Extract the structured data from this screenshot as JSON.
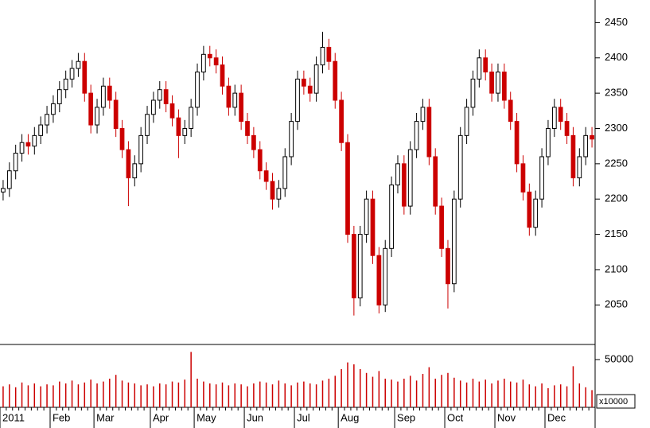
{
  "chart_data": [
    {
      "type": "candlestick",
      "categories": [
        "2011",
        null,
        null,
        null,
        null,
        null,
        null,
        null,
        "Feb",
        null,
        null,
        null,
        null,
        null,
        null,
        "Mar",
        null,
        null,
        null,
        null,
        null,
        null,
        null,
        null,
        "Apr",
        null,
        null,
        null,
        null,
        null,
        null,
        "May",
        null,
        null,
        null,
        null,
        null,
        null,
        null,
        "Jun",
        null,
        null,
        null,
        null,
        null,
        null,
        null,
        "Jul",
        null,
        null,
        null,
        null,
        null,
        null,
        "Aug",
        null,
        null,
        null,
        null,
        null,
        null,
        null,
        null,
        "Sep",
        null,
        null,
        null,
        null,
        null,
        null,
        null,
        "Oct",
        null,
        null,
        null,
        null,
        null,
        null,
        null,
        "Nov",
        null,
        null,
        null,
        null,
        null,
        null,
        null,
        "Dec",
        null,
        null,
        null,
        null,
        null,
        null,
        null
      ],
      "open": [
        2210,
        2215,
        2240,
        2265,
        2280,
        2275,
        2290,
        2305,
        2320,
        2335,
        2355,
        2370,
        2385,
        2395,
        2350,
        2305,
        2330,
        2360,
        2340,
        2300,
        2270,
        2230,
        2250,
        2290,
        2320,
        2340,
        2355,
        2335,
        2315,
        2290,
        2300,
        2330,
        2380,
        2405,
        2400,
        2390,
        2360,
        2330,
        2350,
        2310,
        2290,
        2270,
        2240,
        2225,
        2200,
        2215,
        2260,
        2310,
        2370,
        2360,
        2350,
        2390,
        2415,
        2395,
        2340,
        2280,
        2150,
        2060,
        2150,
        2200,
        2120,
        2050,
        2130,
        2220,
        2250,
        2190,
        2270,
        2310,
        2330,
        2260,
        2190,
        2130,
        2080,
        2200,
        2290,
        2330,
        2370,
        2400,
        2380,
        2350,
        2380,
        2340,
        2310,
        2250,
        2210,
        2160,
        2200,
        2260,
        2300,
        2330,
        2310,
        2290,
        2230,
        2260,
        2290
      ],
      "high": [
        2227,
        2252,
        2277,
        2292,
        2292,
        2302,
        2317,
        2332,
        2347,
        2367,
        2382,
        2397,
        2407,
        2407,
        2362,
        2342,
        2372,
        2372,
        2352,
        2312,
        2282,
        2262,
        2302,
        2332,
        2352,
        2367,
        2367,
        2347,
        2327,
        2312,
        2342,
        2392,
        2417,
        2417,
        2412,
        2402,
        2372,
        2362,
        2362,
        2322,
        2302,
        2282,
        2252,
        2237,
        2227,
        2272,
        2322,
        2382,
        2382,
        2372,
        2402,
        2437,
        2427,
        2407,
        2352,
        2292,
        2162,
        2162,
        2212,
        2212,
        2132,
        2142,
        2232,
        2262,
        2262,
        2282,
        2322,
        2342,
        2342,
        2272,
        2202,
        2142,
        2212,
        2302,
        2342,
        2382,
        2412,
        2412,
        2392,
        2392,
        2392,
        2352,
        2322,
        2262,
        2222,
        2212,
        2272,
        2312,
        2342,
        2342,
        2322,
        2302,
        2272,
        2302,
        2302
      ],
      "low": [
        2198,
        2203,
        2228,
        2253,
        2263,
        2263,
        2278,
        2293,
        2308,
        2323,
        2343,
        2358,
        2373,
        2338,
        2293,
        2293,
        2318,
        2328,
        2288,
        2258,
        2190,
        2218,
        2238,
        2278,
        2308,
        2328,
        2323,
        2303,
        2258,
        2278,
        2288,
        2318,
        2368,
        2388,
        2378,
        2348,
        2318,
        2318,
        2298,
        2278,
        2258,
        2228,
        2213,
        2185,
        2188,
        2203,
        2248,
        2298,
        2348,
        2338,
        2338,
        2378,
        2383,
        2328,
        2268,
        2138,
        2035,
        2048,
        2138,
        2108,
        2038,
        2040,
        2118,
        2208,
        2178,
        2178,
        2258,
        2298,
        2248,
        2178,
        2118,
        2045,
        2068,
        2188,
        2278,
        2318,
        2358,
        2368,
        2338,
        2338,
        2328,
        2298,
        2238,
        2198,
        2148,
        2148,
        2188,
        2248,
        2288,
        2298,
        2278,
        2218,
        2218,
        2248,
        2273
      ],
      "close": [
        2215,
        2240,
        2265,
        2280,
        2275,
        2290,
        2305,
        2320,
        2335,
        2355,
        2370,
        2385,
        2395,
        2350,
        2305,
        2330,
        2360,
        2340,
        2300,
        2270,
        2230,
        2250,
        2290,
        2320,
        2340,
        2355,
        2335,
        2315,
        2290,
        2300,
        2330,
        2380,
        2405,
        2400,
        2390,
        2360,
        2330,
        2350,
        2310,
        2290,
        2270,
        2240,
        2225,
        2200,
        2215,
        2260,
        2310,
        2370,
        2360,
        2350,
        2390,
        2415,
        2395,
        2340,
        2280,
        2150,
        2060,
        2150,
        2200,
        2120,
        2050,
        2130,
        2220,
        2250,
        2190,
        2270,
        2310,
        2330,
        2260,
        2190,
        2130,
        2080,
        2200,
        2290,
        2330,
        2370,
        2400,
        2380,
        2350,
        2380,
        2340,
        2310,
        2250,
        2210,
        2160,
        2200,
        2260,
        2300,
        2330,
        2310,
        2290,
        2230,
        2260,
        2290,
        2285
      ],
      "up_color": "#000000",
      "down_color": "#cc0000",
      "ylim": [
        1994,
        2482
      ],
      "yticks": [
        2050,
        2100,
        2150,
        2200,
        2250,
        2300,
        2350,
        2400,
        2450
      ]
    },
    {
      "type": "bar",
      "values": [
        22000,
        24000,
        21000,
        26000,
        23000,
        25000,
        22000,
        24000,
        23000,
        27000,
        25000,
        28000,
        24000,
        26000,
        29000,
        25000,
        27000,
        30000,
        34000,
        28000,
        26000,
        25000,
        23000,
        24000,
        22000,
        25000,
        24000,
        27000,
        26000,
        29000,
        58000,
        30000,
        27000,
        25000,
        24000,
        26000,
        23000,
        25000,
        24000,
        22000,
        25000,
        27000,
        26000,
        24000,
        28000,
        25000,
        23000,
        26000,
        27000,
        25000,
        24000,
        28000,
        30000,
        33000,
        40000,
        47000,
        45000,
        40000,
        36000,
        32000,
        38000,
        30000,
        29000,
        27000,
        30000,
        33000,
        28000,
        35000,
        42000,
        30000,
        34000,
        36000,
        31000,
        28000,
        26000,
        30000,
        27000,
        29000,
        25000,
        28000,
        30000,
        27000,
        26000,
        29000,
        24000,
        22000,
        25000,
        20000,
        23000,
        24000,
        22000,
        43000,
        25000,
        21000,
        18000
      ],
      "color": "#cc0000",
      "unit_label": "x10000",
      "ylim": [
        0,
        65800
      ],
      "yticks": [
        50000
      ]
    }
  ]
}
